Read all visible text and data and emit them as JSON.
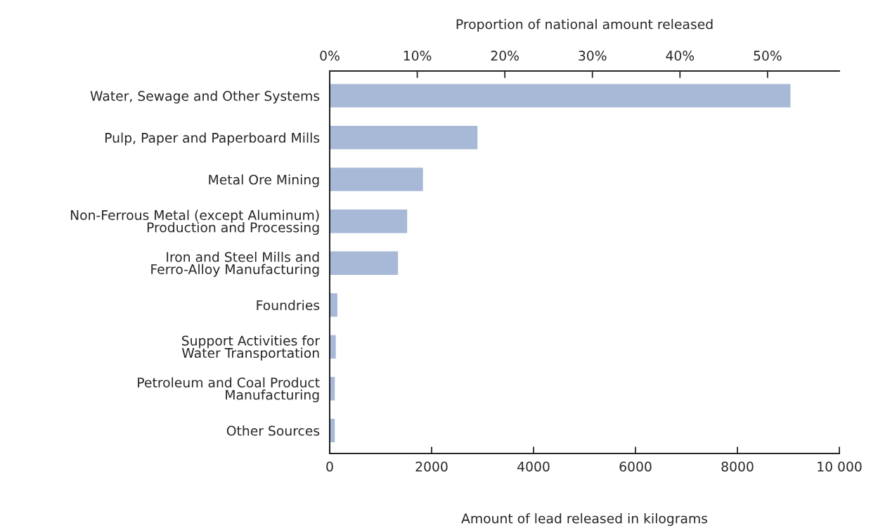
{
  "chart_data": {
    "type": "bar",
    "orientation": "horizontal",
    "categories": [
      "Water, Sewage and Other Systems",
      "Pulp, Paper and Paperboard Mills",
      "Metal Ore Mining",
      "Non-Ferrous Metal (except Aluminum)\nProduction and Processing",
      "Iron and Steel Mills and\nFerro-Alloy Manufacturing",
      "Foundries",
      "Support Activities for\nWater Transportation",
      "Petroleum and Coal Product\nManufacturing",
      "Other Sources"
    ],
    "values": [
      9040,
      2900,
      1830,
      1520,
      1340,
      150,
      120,
      100,
      100
    ],
    "color": "#a7b9d6",
    "xlabel": "Amount of lead released in kilograms",
    "xlim": [
      0,
      10000
    ],
    "xticks": [
      0,
      2000,
      4000,
      6000,
      8000,
      {
        "value": 10000,
        "label": "10 000"
      }
    ],
    "x2label": "Proportion of national amount released",
    "x2lim": [
      0,
      58.2
    ],
    "x2ticks": [
      {
        "value": 0,
        "label": "0%"
      },
      {
        "value": 10,
        "label": "10%"
      },
      {
        "value": 20,
        "label": "20%"
      },
      {
        "value": 30,
        "label": "30%"
      },
      {
        "value": 40,
        "label": "40%"
      },
      {
        "value": 50,
        "label": "50%"
      }
    ],
    "grid": false,
    "legend": false
  }
}
